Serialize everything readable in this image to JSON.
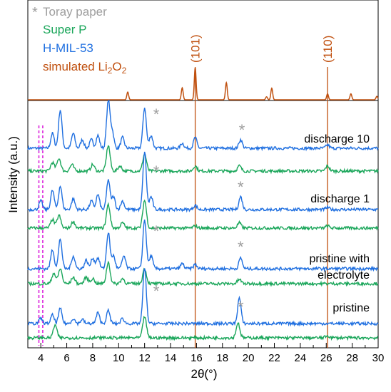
{
  "chart_data": {
    "type": "line",
    "xlabel": "2θ(°)",
    "ylabel": "Intensity (a.u.)",
    "xlim": [
      3,
      30
    ],
    "x_ticks": [
      "4",
      "6",
      "8",
      "10",
      "12",
      "14",
      "16",
      "18",
      "20",
      "22",
      "24",
      "26",
      "28",
      "30"
    ],
    "legend": [
      {
        "name": "Toray paper",
        "marker": "*",
        "color": "#9e9e9e"
      },
      {
        "name": "Super P",
        "color": "#1aa65a"
      },
      {
        "name": "H-MIL-53",
        "color": "#1f6fe0"
      },
      {
        "name": "simulated Li2O2",
        "color": "#c0500f"
      }
    ],
    "reference_lines": [
      {
        "label": "(101)",
        "x": 15.9,
        "color": "#c0500f"
      },
      {
        "label": "(110)",
        "x": 26.1,
        "color": "#c0500f"
      }
    ],
    "dashed_markers": {
      "x": [
        3.85,
        4.15
      ],
      "color": "#e03ce0"
    },
    "simulated_peaks": {
      "name": "simulated Li2O2",
      "x": [
        10.7,
        14.9,
        15.9,
        18.3,
        21.4,
        21.8,
        26.1,
        27.9,
        29.9
      ],
      "y": [
        0.18,
        0.28,
        0.75,
        0.4,
        0.07,
        0.27,
        0.14,
        0.14,
        0.08
      ]
    },
    "stacks": [
      {
        "label": "discharge 10",
        "star_x": [
          12.9,
          19.5
        ],
        "series": [
          {
            "name": "H-MIL-53",
            "color": "#1f6fe0",
            "peaks": [
              [
                4.9,
                0.35
              ],
              [
                5.5,
                0.9
              ],
              [
                6.5,
                0.35
              ],
              [
                7.2,
                0.2
              ],
              [
                7.9,
                0.2
              ],
              [
                8.4,
                0.3
              ],
              [
                9.2,
                1.1
              ],
              [
                9.5,
                0.4
              ],
              [
                10.3,
                0.25
              ],
              [
                12.0,
                0.95
              ],
              [
                12.5,
                0.3
              ],
              [
                14.9,
                0.12
              ],
              [
                15.9,
                0.25
              ],
              [
                19.4,
                0.2
              ],
              [
                26.1,
                0.08
              ]
            ]
          },
          {
            "name": "Super P",
            "color": "#1aa65a",
            "peaks": [
              [
                4.9,
                0.2
              ],
              [
                5.4,
                0.3
              ],
              [
                6.4,
                0.15
              ],
              [
                8.0,
                0.15
              ],
              [
                9.2,
                0.6
              ],
              [
                10.1,
                0.12
              ],
              [
                12.0,
                0.4
              ],
              [
                15.9,
                0.12
              ],
              [
                19.3,
                0.12
              ],
              [
                26.1,
                0.12
              ]
            ]
          }
        ]
      },
      {
        "label": "discharge 1",
        "star_x": [
          12.9,
          19.4
        ],
        "series": [
          {
            "name": "H-MIL-53",
            "color": "#1f6fe0",
            "peaks": [
              [
                4.0,
                0.2
              ],
              [
                4.9,
                0.45
              ],
              [
                5.5,
                0.55
              ],
              [
                6.5,
                0.25
              ],
              [
                7.9,
                0.2
              ],
              [
                8.4,
                0.35
              ],
              [
                9.2,
                0.7
              ],
              [
                9.6,
                0.3
              ],
              [
                10.3,
                0.2
              ],
              [
                12.0,
                1.35
              ],
              [
                12.5,
                0.3
              ],
              [
                15.9,
                0.1
              ],
              [
                19.4,
                0.3
              ],
              [
                26.1,
                0.05
              ]
            ]
          },
          {
            "name": "Super P",
            "color": "#1aa65a",
            "peaks": [
              [
                4.9,
                0.2
              ],
              [
                5.4,
                0.3
              ],
              [
                6.5,
                0.15
              ],
              [
                9.2,
                0.55
              ],
              [
                10.3,
                0.12
              ],
              [
                12.0,
                0.65
              ],
              [
                15.9,
                0.05
              ],
              [
                19.3,
                0.12
              ],
              [
                26.1,
                0.05
              ]
            ]
          }
        ]
      },
      {
        "label": "pristine with electrolyte",
        "star_x": [
          12.9,
          19.4
        ],
        "series": [
          {
            "name": "H-MIL-53",
            "color": "#1f6fe0",
            "peaks": [
              [
                4.9,
                0.45
              ],
              [
                5.5,
                0.7
              ],
              [
                6.5,
                0.3
              ],
              [
                7.5,
                0.2
              ],
              [
                8.0,
                0.25
              ],
              [
                8.4,
                0.25
              ],
              [
                9.2,
                0.85
              ],
              [
                9.6,
                0.3
              ],
              [
                10.4,
                0.3
              ],
              [
                12.0,
                1.15
              ],
              [
                12.5,
                0.3
              ],
              [
                14.9,
                0.12
              ],
              [
                15.9,
                0.1
              ],
              [
                19.4,
                0.25
              ]
            ]
          },
          {
            "name": "Super P",
            "color": "#1aa65a",
            "peaks": [
              [
                5.0,
                0.25
              ],
              [
                5.5,
                0.35
              ],
              [
                6.5,
                0.15
              ],
              [
                7.5,
                0.15
              ],
              [
                8.0,
                0.12
              ],
              [
                9.2,
                0.5
              ],
              [
                10.3,
                0.12
              ],
              [
                12.0,
                0.35
              ],
              [
                19.3,
                0.1
              ]
            ]
          }
        ]
      },
      {
        "label": "pristine",
        "star_x": [
          12.9,
          19.4
        ],
        "series": [
          {
            "name": "H-MIL-53",
            "color": "#1f6fe0",
            "peaks": [
              [
                4.0,
                0.12
              ],
              [
                4.9,
                0.2
              ],
              [
                5.5,
                0.35
              ],
              [
                6.5,
                0.12
              ],
              [
                7.2,
                0.1
              ],
              [
                8.4,
                0.25
              ],
              [
                9.2,
                0.3
              ],
              [
                10.3,
                0.12
              ],
              [
                12.0,
                1.3
              ],
              [
                19.3,
                0.6
              ]
            ]
          },
          {
            "name": "Super P",
            "color": "#1aa65a",
            "peaks": [
              [
                5.1,
                0.3
              ],
              [
                12.0,
                0.5
              ],
              [
                19.2,
                0.35
              ],
              [
                26.1,
                0.05
              ]
            ]
          }
        ]
      }
    ]
  }
}
